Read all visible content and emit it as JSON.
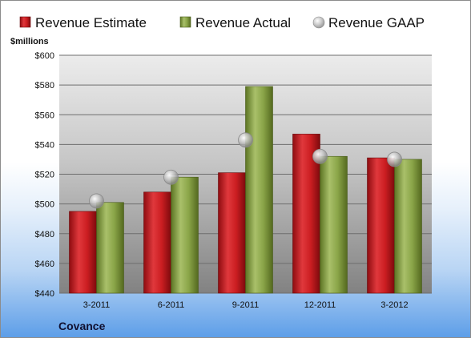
{
  "chart_data": {
    "type": "bar",
    "title": "",
    "ylabel": "$millions",
    "xlabel": "",
    "categories": [
      "3-2011",
      "6-2011",
      "9-2011",
      "12-2011",
      "3-2012"
    ],
    "series": [
      {
        "name": "Revenue Estimate",
        "type": "bar",
        "values": [
          495,
          508,
          521,
          547,
          531
        ]
      },
      {
        "name": "Revenue Actual",
        "type": "bar",
        "values": [
          501,
          518,
          579,
          532,
          530
        ]
      },
      {
        "name": "Revenue GAAP",
        "type": "scatter",
        "values": [
          502,
          518,
          543,
          532,
          530
        ]
      }
    ],
    "ylim": [
      440,
      600
    ],
    "yticks": [
      440,
      460,
      480,
      500,
      520,
      540,
      560,
      580,
      600
    ],
    "ytick_labels": [
      "$440",
      "$460",
      "$480",
      "$500",
      "$520",
      "$540",
      "$560",
      "$580",
      "$600"
    ],
    "grid": true,
    "legend_position": "top",
    "colors": {
      "estimate": "#c0141a",
      "actual": "#7f9b3d",
      "gaap": "#b0b0b0"
    }
  },
  "footer": {
    "company": "Covance"
  }
}
